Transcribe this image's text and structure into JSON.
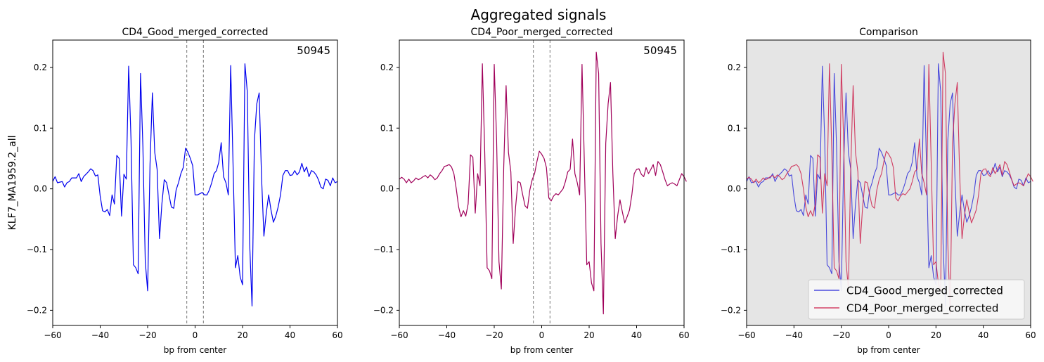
{
  "figure": {
    "suptitle": "Aggregated signals",
    "ylabel": "KLF7_MA1959.2_all"
  },
  "colors": {
    "good": "#0000ee",
    "poor": "#a0005a",
    "good_overlay": "#2b2bd9",
    "poor_overlay": "#cc1f4a",
    "comparison_bg": "#e5e5e5",
    "guide": "#777777"
  },
  "chart_data": [
    {
      "type": "line",
      "title": "CD4_Good_merged_corrected",
      "xlabel": "bp from center",
      "ylabel": "KLF7_MA1959.2_all",
      "annotation": "50945",
      "xlim": [
        -60,
        60
      ],
      "ylim": [
        -0.225,
        0.245
      ],
      "xticks": [
        -60,
        -40,
        -20,
        0,
        20,
        40,
        60
      ],
      "yticks": [
        -0.2,
        -0.1,
        0.0,
        0.1,
        0.2
      ],
      "xtick_labels": [
        "−60",
        "−40",
        "−20",
        "0",
        "20",
        "40",
        "60"
      ],
      "ytick_labels": [
        "−0.2",
        "−0.1",
        "0.0",
        "0.1",
        "0.2"
      ],
      "vlines": [
        -3.5,
        3.5
      ],
      "grid": false,
      "series": [
        {
          "name": "CD4_Good_merged_corrected",
          "color": "#0000ee",
          "ref": "good"
        }
      ]
    },
    {
      "type": "line",
      "title": "CD4_Poor_merged_corrected",
      "xlabel": "bp from center",
      "annotation": "50945",
      "xlim": [
        -60,
        60
      ],
      "ylim": [
        -0.225,
        0.245
      ],
      "xticks": [
        -60,
        -40,
        -20,
        0,
        20,
        40,
        60
      ],
      "yticks": [
        -0.2,
        -0.1,
        0.0,
        0.1,
        0.2
      ],
      "xtick_labels": [
        "−60",
        "−40",
        "−20",
        "0",
        "20",
        "40",
        "60"
      ],
      "ytick_labels": [
        "−0.2",
        "−0.1",
        "0.0",
        "0.1",
        "0.2"
      ],
      "vlines": [
        -3.5,
        3.5
      ],
      "grid": false,
      "series": [
        {
          "name": "CD4_Poor_merged_corrected",
          "color": "#a0005a",
          "ref": "poor"
        }
      ]
    },
    {
      "type": "line",
      "title": "Comparison",
      "xlabel": "bp from center",
      "xlim": [
        -60,
        60
      ],
      "ylim": [
        -0.225,
        0.245
      ],
      "xticks": [
        -60,
        -40,
        -20,
        0,
        20,
        40,
        60
      ],
      "yticks": [
        -0.2,
        -0.1,
        0.0,
        0.1,
        0.2
      ],
      "xtick_labels": [
        "−60",
        "−40",
        "−20",
        "0",
        "20",
        "40",
        "60"
      ],
      "ytick_labels": [
        "−0.2",
        "−0.1",
        "0.0",
        "0.1",
        "0.2"
      ],
      "legend_position": "lower-right",
      "background": "#e5e5e5",
      "grid": false,
      "series": [
        {
          "name": "CD4_Good_merged_corrected",
          "color": "#2b2bd9",
          "ref": "good"
        },
        {
          "name": "CD4_Poor_merged_corrected",
          "color": "#cc1f4a",
          "ref": "poor"
        }
      ]
    }
  ],
  "series_values": {
    "x_start": -60,
    "x_step": 1,
    "good": [
      0.012,
      0.02,
      0.01,
      0.011,
      0.012,
      0.003,
      0.01,
      0.012,
      0.018,
      0.018,
      0.018,
      0.025,
      0.012,
      0.02,
      0.024,
      0.028,
      0.033,
      0.03,
      0.021,
      0.023,
      -0.012,
      -0.036,
      -0.038,
      -0.034,
      -0.044,
      -0.01,
      -0.025,
      0.055,
      0.05,
      -0.045,
      0.024,
      0.016,
      0.202,
      0.08,
      -0.125,
      -0.13,
      -0.14,
      0.19,
      0.07,
      -0.12,
      -0.168,
      0.04,
      0.158,
      0.06,
      0.032,
      -0.082,
      -0.025,
      0.015,
      0.01,
      -0.01,
      -0.03,
      -0.032,
      -0.002,
      0.01,
      0.025,
      0.035,
      0.067,
      0.06,
      0.05,
      0.038,
      -0.01,
      -0.01,
      -0.008,
      -0.006,
      -0.01,
      -0.01,
      -0.002,
      0.01,
      0.025,
      0.03,
      0.044,
      0.076,
      0.02,
      0.01,
      -0.01,
      0.203,
      0.04,
      -0.13,
      -0.11,
      -0.145,
      -0.158,
      0.206,
      0.16,
      -0.09,
      -0.193,
      0.08,
      0.14,
      0.158,
      0.02,
      -0.078,
      -0.04,
      -0.01,
      -0.035,
      -0.055,
      -0.045,
      -0.03,
      -0.01,
      0.022,
      0.03,
      0.03,
      0.022,
      0.023,
      0.03,
      0.023,
      0.028,
      0.042,
      0.028,
      0.036,
      0.02,
      0.03,
      0.028,
      0.023,
      0.015,
      0.003,
      0.0,
      0.016,
      0.014,
      0.005,
      0.018,
      0.01,
      0.012
    ],
    "poor": [
      0.016,
      0.019,
      0.016,
      0.01,
      0.016,
      0.01,
      0.013,
      0.018,
      0.015,
      0.017,
      0.02,
      0.022,
      0.018,
      0.023,
      0.02,
      0.015,
      0.018,
      0.025,
      0.03,
      0.037,
      0.038,
      0.04,
      0.036,
      0.025,
      0.0,
      -0.03,
      -0.046,
      -0.036,
      -0.045,
      -0.025,
      0.056,
      0.052,
      -0.04,
      0.025,
      0.005,
      0.206,
      0.06,
      -0.13,
      -0.135,
      -0.148,
      0.205,
      0.08,
      -0.12,
      -0.165,
      0.035,
      0.17,
      0.06,
      0.028,
      -0.09,
      -0.03,
      0.012,
      0.01,
      -0.01,
      -0.028,
      -0.032,
      -0.002,
      0.015,
      0.025,
      0.045,
      0.062,
      0.057,
      0.05,
      0.035,
      -0.015,
      -0.02,
      -0.012,
      -0.008,
      -0.01,
      -0.005,
      0.0,
      0.012,
      0.028,
      0.032,
      0.082,
      0.025,
      0.01,
      -0.01,
      0.205,
      0.04,
      -0.125,
      -0.12,
      -0.155,
      -0.168,
      0.225,
      0.19,
      -0.09,
      -0.206,
      0.075,
      0.14,
      0.175,
      0.025,
      -0.082,
      -0.045,
      -0.018,
      -0.038,
      -0.056,
      -0.046,
      -0.035,
      -0.01,
      0.025,
      0.032,
      0.033,
      0.024,
      0.02,
      0.035,
      0.025,
      0.032,
      0.04,
      0.022,
      0.045,
      0.04,
      0.028,
      0.015,
      0.005,
      0.008,
      0.01,
      0.008,
      0.005,
      0.015,
      0.025,
      0.02,
      0.012
    ]
  }
}
